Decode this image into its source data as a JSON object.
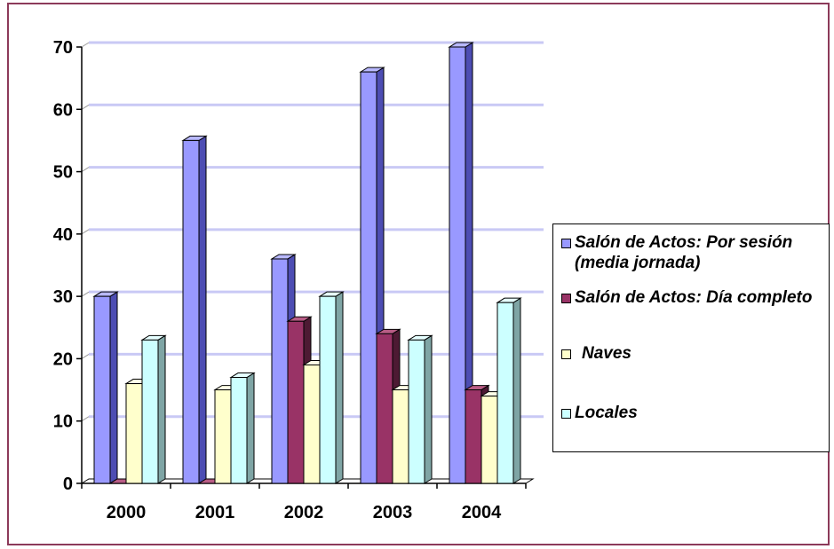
{
  "chart_data": {
    "type": "bar",
    "categories": [
      "2000",
      "2001",
      "2002",
      "2003",
      "2004"
    ],
    "series": [
      {
        "name": "Salón de Actos: Por sesión (media jornada)",
        "values": [
          30,
          55,
          36,
          66,
          70
        ]
      },
      {
        "name": "Salón de Actos: Día completo",
        "values": [
          0,
          0,
          26,
          24,
          15
        ]
      },
      {
        "name": "Naves",
        "values": [
          16,
          15,
          19,
          15,
          14
        ]
      },
      {
        "name": "Locales",
        "values": [
          23,
          17,
          30,
          23,
          29
        ]
      }
    ],
    "yticks": [
      "0",
      "10",
      "20",
      "30",
      "40",
      "50",
      "60",
      "70"
    ],
    "ylim": [
      0,
      70
    ],
    "grid": true,
    "legend_position": "right",
    "colors": {
      "series": [
        "#9999ff",
        "#993366",
        "#ffffcc",
        "#ccffff"
      ],
      "series_side": [
        "#4d4db3",
        "#4d1a33",
        "#b3b38c",
        "#7fa5a5"
      ],
      "series_top": [
        "#b8b8ff",
        "#b85c85",
        "#ffffe6",
        "#e6ffff"
      ],
      "grid": "#c9c9f5",
      "frame": "#8c3a5a"
    }
  }
}
